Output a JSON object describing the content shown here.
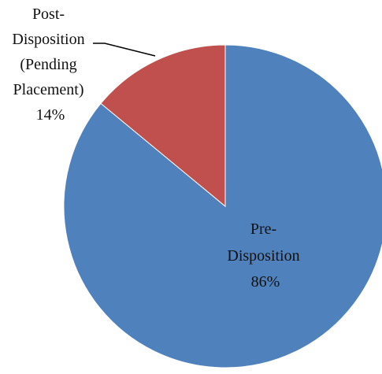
{
  "chart_data": {
    "type": "pie",
    "start_angle_deg": 0,
    "direction": "clockwise",
    "slices": [
      {
        "label_lines": [
          "Pre-",
          "Disposition"
        ],
        "value": 86,
        "percent_label": "86%",
        "color": "#4F81BD"
      },
      {
        "label_lines": [
          "Post-",
          "Disposition",
          "(Pending",
          "Placement)"
        ],
        "value": 14,
        "percent_label": "14%",
        "color": "#C0504D"
      }
    ]
  }
}
